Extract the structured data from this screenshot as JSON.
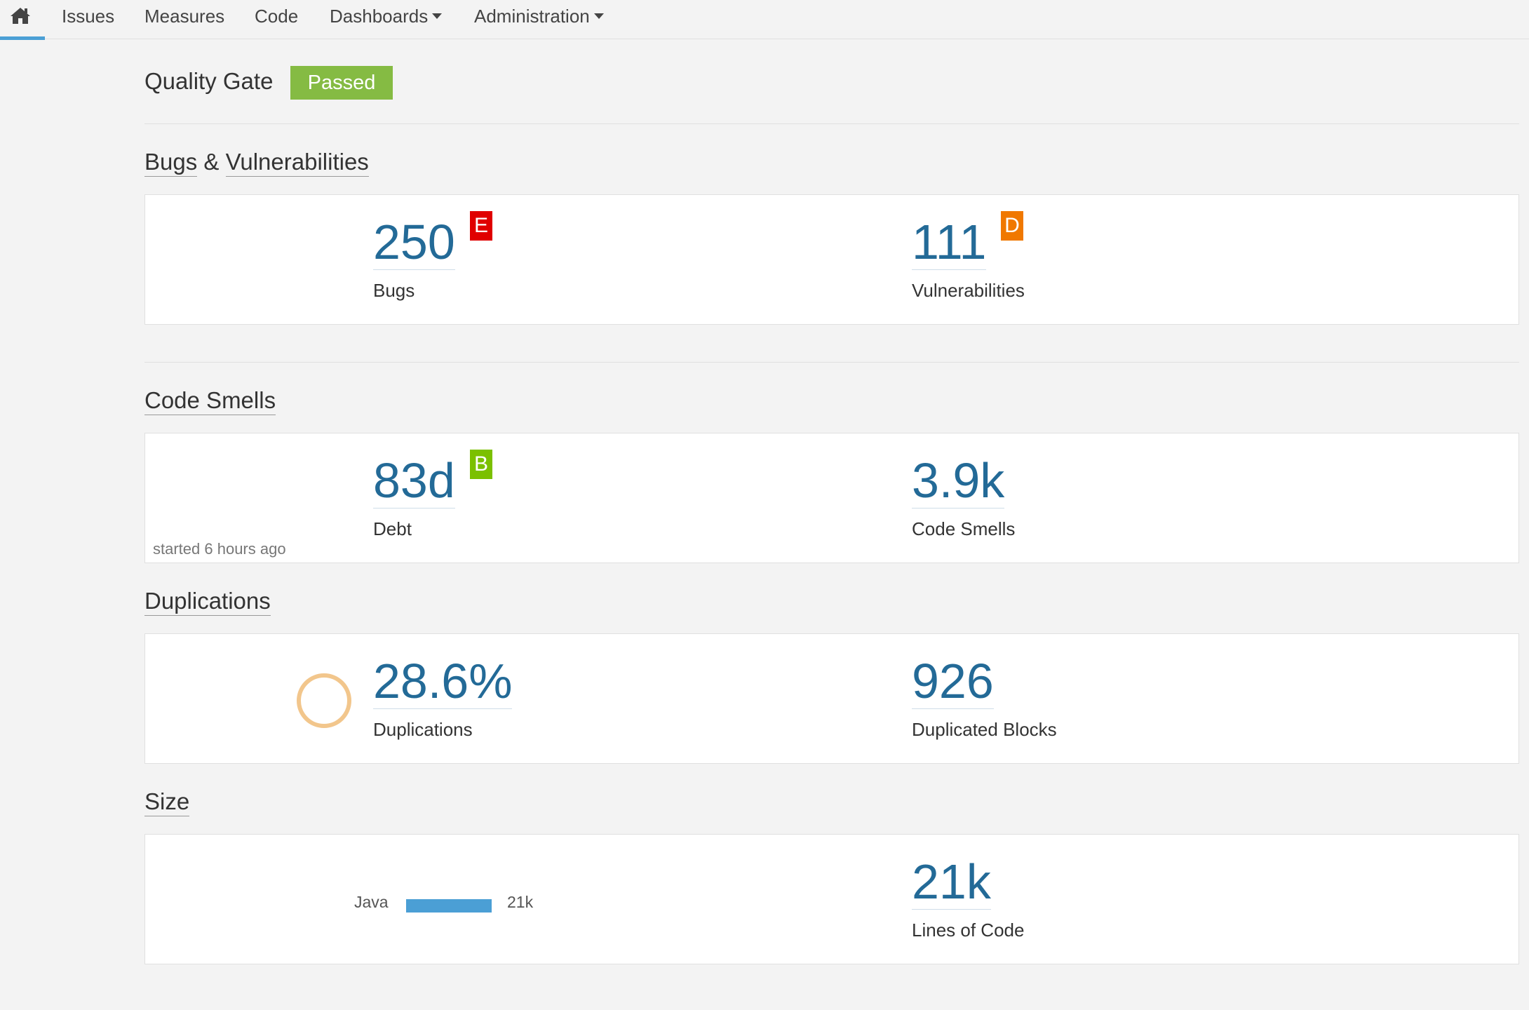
{
  "nav": {
    "items": [
      {
        "label": "Issues"
      },
      {
        "label": "Measures"
      },
      {
        "label": "Code"
      },
      {
        "label": "Dashboards"
      },
      {
        "label": "Administration"
      }
    ]
  },
  "quality_gate": {
    "title": "Quality Gate",
    "status": "Passed",
    "status_color": "#85bb43"
  },
  "sections": {
    "bugs_vulns": {
      "title_a": "Bugs",
      "title_sep": " & ",
      "title_b": "Vulnerabilities",
      "bugs": {
        "value": "250",
        "label": "Bugs",
        "rating": "E",
        "rating_color": "#e00000"
      },
      "vulns": {
        "value": "111",
        "label": "Vulnerabilities",
        "rating": "D",
        "rating_color": "#f07800"
      }
    },
    "code_smells": {
      "title": "Code Smells",
      "debt": {
        "value": "83d",
        "label": "Debt",
        "rating": "B",
        "rating_color": "#7bc000"
      },
      "smells": {
        "value": "3.9k",
        "label": "Code Smells"
      },
      "note": "started 6 hours ago"
    },
    "duplications": {
      "title": "Duplications",
      "density": {
        "value": "28.6%",
        "label": "Duplications"
      },
      "blocks": {
        "value": "926",
        "label": "Duplicated Blocks"
      },
      "circle_color": "#f2c68c"
    },
    "size": {
      "title": "Size",
      "languages": [
        {
          "name": "Java",
          "count": "21k",
          "fraction": 1.0
        }
      ],
      "loc": {
        "value": "21k",
        "label": "Lines of Code"
      }
    }
  },
  "colors": {
    "accent": "#4b9fd5",
    "measure_value": "#236a97"
  }
}
